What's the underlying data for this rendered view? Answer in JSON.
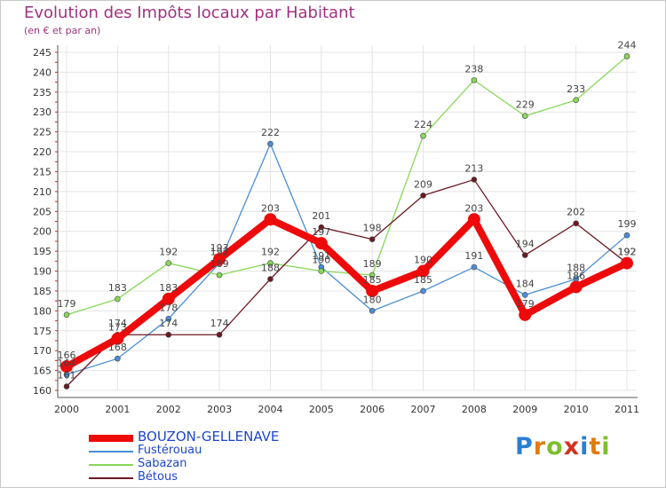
{
  "header": {
    "title": "Evolution des Impôts locaux par Habitant",
    "subtitle": "(en € et par an)"
  },
  "logo": {
    "letters": [
      "P",
      "r",
      "o",
      "x",
      "i",
      "t",
      "i"
    ],
    "colors": [
      "#2b7fd1",
      "#e07b12",
      "#7fbf2b",
      "#d1331f",
      "#2b7fd1",
      "#e07b12",
      "#7fbf2b"
    ]
  },
  "chart_data": {
    "type": "line",
    "title": "Evolution des Impôts locaux par Habitant",
    "subtitle": "(en € et par an)",
    "xlabel": "",
    "ylabel": "",
    "categories": [
      "2000",
      "2001",
      "2002",
      "2003",
      "2004",
      "2005",
      "2006",
      "2007",
      "2008",
      "2009",
      "2010",
      "2011"
    ],
    "ylim": [
      160,
      245
    ],
    "yticks": [
      160,
      165,
      170,
      175,
      180,
      185,
      190,
      195,
      200,
      205,
      210,
      215,
      220,
      225,
      230,
      235,
      240,
      245
    ],
    "grid": true,
    "legend_position": "bottom-left",
    "series": [
      {
        "name": "Fustérouau",
        "color": "#4a8ed6",
        "main": false,
        "values": [
          164,
          168,
          178,
          192,
          222,
          191,
          180,
          185,
          191,
          184,
          188,
          199
        ]
      },
      {
        "name": "Sabazan",
        "color": "#88d85a",
        "main": false,
        "values": [
          179,
          183,
          192,
          189,
          192,
          190,
          189,
          224,
          238,
          229,
          233,
          244
        ]
      },
      {
        "name": "Bétous",
        "color": "#6b1a22",
        "main": false,
        "values": [
          161,
          174,
          174,
          174,
          188,
          201,
          198,
          209,
          213,
          194,
          202,
          192
        ]
      },
      {
        "name": "BOUZON-GELLENAVE",
        "color": "#ee0a0a",
        "main": true,
        "values": [
          166,
          173,
          183,
          193,
          203,
          197,
          185,
          190,
          203,
          179,
          186,
          192
        ]
      }
    ],
    "legend_order": [
      "BOUZON-GELLENAVE",
      "Fustérouau",
      "Sabazan",
      "Bétous"
    ]
  }
}
